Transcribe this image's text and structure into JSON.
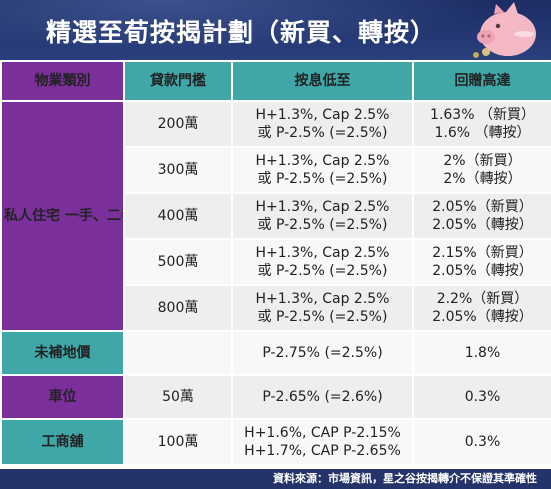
{
  "header": {
    "title": "精選至荀按揭計劃（新買、轉按）"
  },
  "colors": {
    "header_bg": "#1c2d63",
    "purple": "#7a2f9b",
    "teal": "#3fa7a8",
    "row_gray": "#eeeeee"
  },
  "table": {
    "headers": [
      "物業類別",
      "貸款門檻",
      "按息低至",
      "回贈高達"
    ],
    "residential_label": "私人住宅 一手、二手",
    "residential_rows": [
      {
        "threshold": "200萬",
        "rate1": "H+1.3%, Cap 2.5%",
        "rate2": "或 P-2.5% (=2.5%)",
        "rebate1": "1.63% （新買）",
        "rebate2": "1.6% （轉按）"
      },
      {
        "threshold": "300萬",
        "rate1": "H+1.3%, Cap 2.5%",
        "rate2": "或 P-2.5% (=2.5%)",
        "rebate1": "2%（新買）",
        "rebate2": "2%（轉按）"
      },
      {
        "threshold": "400萬",
        "rate1": "H+1.3%, Cap 2.5%",
        "rate2": "或 P-2.5% (=2.5%)",
        "rebate1": "2.05%（新買）",
        "rebate2": "2.05%（轉按）"
      },
      {
        "threshold": "500萬",
        "rate1": "H+1.3%, Cap 2.5%",
        "rate2": "或 P-2.5% (=2.5%)",
        "rebate1": "2.15%（新買）",
        "rebate2": "2.05%（轉按）"
      },
      {
        "threshold": "800萬",
        "rate1": "H+1.3%, Cap 2.5%",
        "rate2": "或 P-2.5% (=2.5%)",
        "rebate1": "2.2%（新買）",
        "rebate2": "2.05%（轉按）"
      }
    ],
    "unpaid_land": {
      "label": "未補地價",
      "threshold": "",
      "rate": "P-2.75% (=2.5%)",
      "rebate": "1.8%"
    },
    "parking": {
      "label": "車位",
      "threshold": "50萬",
      "rate": "P-2.65% (=2.6%)",
      "rebate": "0.3%"
    },
    "commercial": {
      "label": "工商舖",
      "threshold": "100萬",
      "rate1": "H+1.6%, CAP P-2.15%",
      "rate2": "H+1.7%, CAP P-2.65%",
      "rebate": "0.3%"
    }
  },
  "footer": {
    "source": "資料來源：市場資訊，星之谷按揭轉介不保證其準確性"
  }
}
